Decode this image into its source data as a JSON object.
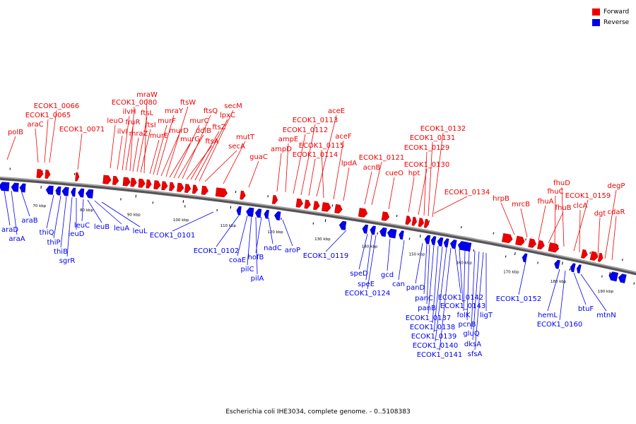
{
  "legend": {
    "forward": {
      "label": "Forward",
      "color": "#ee0000"
    },
    "reverse": {
      "label": "Reverse",
      "color": "#0000ee"
    }
  },
  "caption": "Escherichia coli IHE3034, complete genome. - 0..5108383",
  "ticks": [
    {
      "kbp": 70,
      "label": "70 kbp"
    },
    {
      "kbp": 80,
      "label": "80 kbp"
    },
    {
      "kbp": 90,
      "label": "90 kbp"
    },
    {
      "kbp": 100,
      "label": "100 kbp"
    },
    {
      "kbp": 110,
      "label": "110 kbp"
    },
    {
      "kbp": 120,
      "label": "120 kbp"
    },
    {
      "kbp": 130,
      "label": "130 kbp"
    },
    {
      "kbp": 140,
      "label": "140 kbp"
    },
    {
      "kbp": 150,
      "label": "150 kbp"
    },
    {
      "kbp": 160,
      "label": "160 kbp"
    },
    {
      "kbp": 170,
      "label": "170 kbp"
    },
    {
      "kbp": 180,
      "label": "180 kbp"
    },
    {
      "kbp": 190,
      "label": "190 kbp"
    }
  ],
  "forward_labels": [
    "polB",
    "araC",
    "ECOK1_0065",
    "ECOK1_0066",
    "ECOK1_0071",
    "leuO",
    "ilvI",
    "ilvH",
    "fruR",
    "ECOK1_0080",
    "mraZ",
    "ftsL",
    "ftsI",
    "mraW",
    "murE",
    "murF",
    "mraY",
    "murD",
    "ftsW",
    "murG",
    "murC",
    "ddlB",
    "ftsQ",
    "ftsA",
    "ftsZ",
    "lpxC",
    "secM",
    "secA",
    "mutT",
    "guaC",
    "ampD",
    "ampE",
    "ECOK1_0112",
    "ECOK1_0113",
    "aceE",
    "ECOK1_0114",
    "ECOK1_0115",
    "aceF",
    "lpdA",
    "acnB",
    "ECOK1_0121",
    "cueO",
    "hpt",
    "ECOK1_0130",
    "ECOK1_0129",
    "ECOK1_0131",
    "ECOK1_0132",
    "ECOK1_0134",
    "hrpB",
    "mrcB",
    "fhuA",
    "fhuB",
    "fhuC",
    "fhuD",
    "ECOK1_0159",
    "clcA",
    "dgt",
    "degP",
    "cdaR"
  ],
  "reverse_labels": [
    "araD",
    "araA",
    "araB",
    "thiQ",
    "thiP",
    "thiB",
    "sgrR",
    "leuD",
    "leuC",
    "leuB",
    "leuA",
    "leuL",
    "ECOK1_0101",
    "ECOK1_0102",
    "coaE",
    "pilC",
    "pilA",
    "hofB",
    "nadC",
    "aroP",
    "ECOK1_0119",
    "speD",
    "speE",
    "ECOK1_0124",
    "gcd",
    "can",
    "panD",
    "panC",
    "panB",
    "ECOK1_0137",
    "ECOK1_0138",
    "ECOK1_0139",
    "ECOK1_0140",
    "ECOK1_0141",
    "ECOK1_0142",
    "ECOK1_0143",
    "folK",
    "pcnB",
    "gluQ",
    "dksA",
    "sfsA",
    "ligT",
    "ECOK1_0152",
    "hemL",
    "ECOK1_0160",
    "btuF",
    "mtnN"
  ]
}
